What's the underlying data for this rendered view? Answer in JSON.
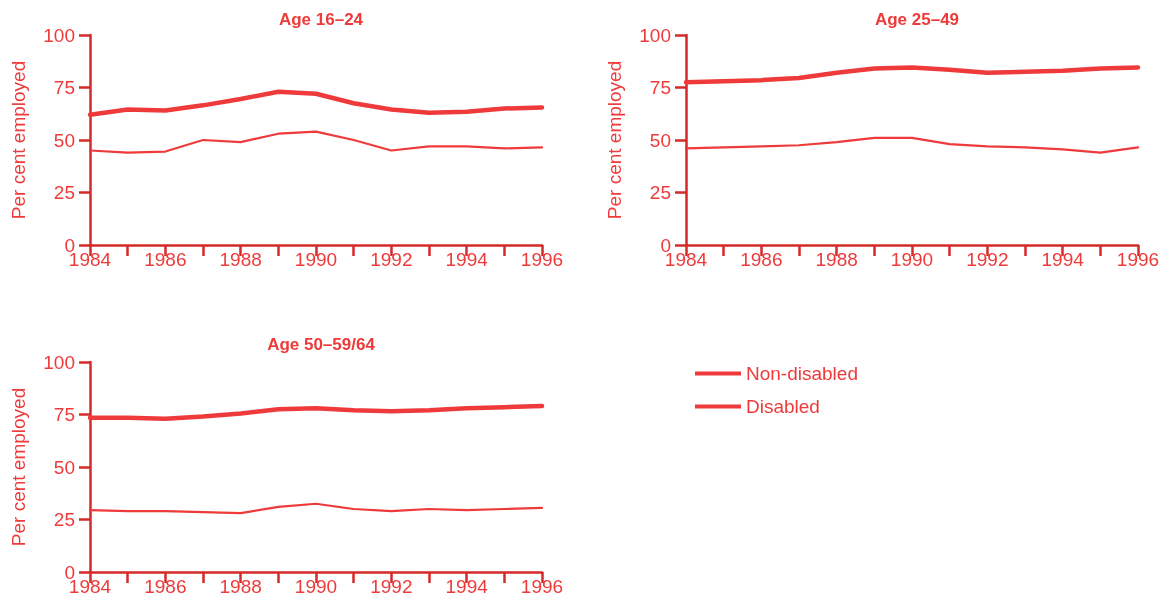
{
  "chart_data": [
    {
      "type": "line",
      "title": "Age 16–24",
      "ylabel": "Per cent employed",
      "x": [
        1984,
        1985,
        1986,
        1987,
        1988,
        1989,
        1990,
        1991,
        1992,
        1993,
        1994,
        1995,
        1996
      ],
      "series": [
        {
          "color": "#ee3a3a",
          "values": [
            62,
            64.5,
            64,
            66.5,
            69.5,
            73,
            72,
            67.5,
            64.5,
            63,
            63.5,
            65,
            65.5
          ]
        },
        {
          "color": "#ee3a3a",
          "values": [
            45,
            44,
            44.5,
            50,
            49,
            53,
            54,
            50,
            45,
            47,
            47,
            46,
            46.5
          ]
        }
      ],
      "xlim": [
        1984,
        1996
      ],
      "xticks": [
        1984,
        {
          "value": 1985,
          "label": null
        },
        1986,
        {
          "value": 1987,
          "label": null
        },
        1988,
        {
          "value": 1989,
          "label": null
        },
        1990,
        {
          "value": 1991,
          "label": null
        },
        1992,
        {
          "value": 1993,
          "label": null
        },
        1994,
        {
          "value": 1995,
          "label": null
        },
        1996
      ],
      "ylim": [
        0,
        100
      ],
      "yticks": [
        0,
        25,
        50,
        75,
        100
      ],
      "grid": false,
      "legend": false,
      "marker": "none",
      "line_style": "solid"
    },
    {
      "type": "line",
      "title": "Age 25–49",
      "ylabel": "Per cent employed",
      "x": [
        1984,
        1985,
        1986,
        1987,
        1988,
        1989,
        1990,
        1991,
        1992,
        1993,
        1994,
        1995,
        1996
      ],
      "series": [
        {
          "color": "#ee3a3a",
          "values": [
            77.5,
            78,
            78.5,
            79.5,
            82,
            84,
            84.5,
            83.5,
            82,
            82.5,
            83,
            84,
            84.5
          ]
        },
        {
          "color": "#ee3a3a",
          "values": [
            46,
            46.5,
            47,
            47.5,
            49,
            51,
            51,
            48,
            47,
            46.5,
            45.5,
            44,
            46.5
          ]
        }
      ],
      "xlim": [
        1984,
        1996
      ],
      "xticks": [
        1984,
        {
          "value": 1985,
          "label": null
        },
        1986,
        {
          "value": 1987,
          "label": null
        },
        1988,
        {
          "value": 1989,
          "label": null
        },
        1990,
        {
          "value": 1991,
          "label": null
        },
        1992,
        {
          "value": 1993,
          "label": null
        },
        1994,
        {
          "value": 1995,
          "label": null
        },
        1996
      ],
      "ylim": [
        0,
        100
      ],
      "yticks": [
        0,
        25,
        50,
        75,
        100
      ],
      "grid": false,
      "legend": false,
      "marker": "none",
      "line_style": "solid"
    },
    {
      "type": "line",
      "title": "Age 50–59/64",
      "ylabel": "Per cent employed",
      "x": [
        1984,
        1985,
        1986,
        1987,
        1988,
        1989,
        1990,
        1991,
        1992,
        1993,
        1994,
        1995,
        1996
      ],
      "series": [
        {
          "name": "Non-disabled",
          "color": "#ee3a3a",
          "values": [
            73.5,
            73.5,
            73,
            74,
            75.5,
            77.5,
            78,
            77,
            76.5,
            77,
            78,
            78.5,
            79
          ]
        },
        {
          "name": "Disabled",
          "color": "#ee3a3a",
          "values": [
            29.5,
            29,
            29,
            28.5,
            28,
            31,
            32.5,
            30,
            29,
            30,
            29.5,
            30,
            30.5
          ]
        }
      ],
      "xlim": [
        1984,
        1996
      ],
      "xticks": [
        1984,
        {
          "value": 1985,
          "label": null
        },
        1986,
        {
          "value": 1987,
          "label": null
        },
        1988,
        {
          "value": 1989,
          "label": null
        },
        1990,
        {
          "value": 1991,
          "label": null
        },
        1992,
        {
          "value": 1993,
          "label": null
        },
        1994,
        {
          "value": 1995,
          "label": null
        },
        1996
      ],
      "ylim": [
        0,
        100
      ],
      "yticks": [
        0,
        25,
        50,
        75,
        100
      ],
      "grid": false,
      "legend": "right",
      "marker": "none",
      "line_style": "solid"
    }
  ]
}
